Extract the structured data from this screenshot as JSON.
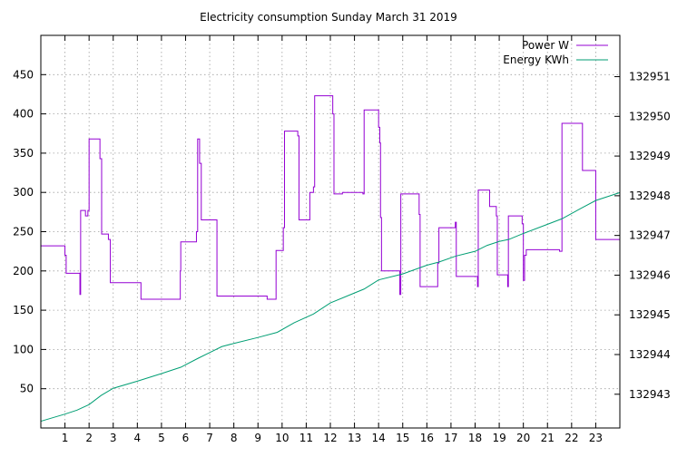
{
  "chart_data": {
    "type": "line",
    "title": "Electricity consumption Sunday March 31 2019",
    "grid": true,
    "legend_position": "top-right",
    "x_axis": {
      "range": [
        0,
        24
      ],
      "ticks": [
        1,
        2,
        3,
        4,
        5,
        6,
        7,
        8,
        9,
        10,
        11,
        12,
        13,
        14,
        15,
        16,
        17,
        18,
        19,
        20,
        21,
        22,
        23
      ]
    },
    "y_axis_left": {
      "range": [
        0,
        500
      ],
      "ticks": [
        50,
        100,
        150,
        200,
        250,
        300,
        350,
        400,
        450
      ]
    },
    "y_axis_right": {
      "range": [
        132942.15,
        132952.04
      ],
      "ticks": [
        132943,
        132944,
        132945,
        132946,
        132947,
        132948,
        132949,
        132950,
        132951
      ]
    },
    "series": [
      {
        "name": "Power W",
        "axis": "left",
        "color": "#9400d3",
        "step": true,
        "points": [
          [
            0.0,
            232
          ],
          [
            1.0,
            232
          ],
          [
            1.0,
            220
          ],
          [
            1.05,
            220
          ],
          [
            1.05,
            197
          ],
          [
            1.62,
            197
          ],
          [
            1.62,
            170
          ],
          [
            1.65,
            170
          ],
          [
            1.65,
            277
          ],
          [
            1.85,
            277
          ],
          [
            1.85,
            270
          ],
          [
            1.95,
            270
          ],
          [
            1.95,
            277
          ],
          [
            2.0,
            277
          ],
          [
            2.0,
            368
          ],
          [
            2.45,
            368
          ],
          [
            2.45,
            343
          ],
          [
            2.52,
            343
          ],
          [
            2.52,
            247
          ],
          [
            2.8,
            247
          ],
          [
            2.8,
            240
          ],
          [
            2.88,
            240
          ],
          [
            2.88,
            185
          ],
          [
            4.15,
            185
          ],
          [
            4.15,
            164
          ],
          [
            5.78,
            164
          ],
          [
            5.78,
            200
          ],
          [
            5.8,
            200
          ],
          [
            5.8,
            237
          ],
          [
            6.45,
            237
          ],
          [
            6.45,
            250
          ],
          [
            6.5,
            250
          ],
          [
            6.5,
            368
          ],
          [
            6.58,
            368
          ],
          [
            6.58,
            337
          ],
          [
            6.65,
            337
          ],
          [
            6.65,
            265
          ],
          [
            7.3,
            265
          ],
          [
            7.3,
            168
          ],
          [
            9.38,
            168
          ],
          [
            9.38,
            164
          ],
          [
            9.75,
            164
          ],
          [
            9.75,
            226
          ],
          [
            10.05,
            226
          ],
          [
            10.05,
            255
          ],
          [
            10.1,
            255
          ],
          [
            10.1,
            378
          ],
          [
            10.65,
            378
          ],
          [
            10.65,
            372
          ],
          [
            10.7,
            372
          ],
          [
            10.7,
            265
          ],
          [
            11.15,
            265
          ],
          [
            11.15,
            300
          ],
          [
            11.3,
            300
          ],
          [
            11.3,
            307
          ],
          [
            11.35,
            307
          ],
          [
            11.35,
            423
          ],
          [
            12.1,
            423
          ],
          [
            12.1,
            400
          ],
          [
            12.15,
            400
          ],
          [
            12.15,
            298
          ],
          [
            12.5,
            298
          ],
          [
            12.5,
            300
          ],
          [
            13.35,
            300
          ],
          [
            13.35,
            298
          ],
          [
            13.4,
            298
          ],
          [
            13.4,
            405
          ],
          [
            14.0,
            405
          ],
          [
            14.0,
            383
          ],
          [
            14.05,
            383
          ],
          [
            14.05,
            363
          ],
          [
            14.08,
            363
          ],
          [
            14.08,
            268
          ],
          [
            14.12,
            268
          ],
          [
            14.12,
            200
          ],
          [
            14.88,
            200
          ],
          [
            14.88,
            170
          ],
          [
            14.92,
            170
          ],
          [
            14.92,
            298
          ],
          [
            15.68,
            298
          ],
          [
            15.68,
            272
          ],
          [
            15.72,
            272
          ],
          [
            15.72,
            180
          ],
          [
            16.45,
            180
          ],
          [
            16.45,
            210
          ],
          [
            16.5,
            210
          ],
          [
            16.5,
            255
          ],
          [
            17.18,
            255
          ],
          [
            17.18,
            262
          ],
          [
            17.22,
            262
          ],
          [
            17.22,
            193
          ],
          [
            18.1,
            193
          ],
          [
            18.1,
            180
          ],
          [
            18.13,
            180
          ],
          [
            18.13,
            303
          ],
          [
            18.6,
            303
          ],
          [
            18.6,
            282
          ],
          [
            18.88,
            282
          ],
          [
            18.88,
            270
          ],
          [
            18.92,
            270
          ],
          [
            18.92,
            195
          ],
          [
            19.35,
            195
          ],
          [
            19.35,
            180
          ],
          [
            19.38,
            180
          ],
          [
            19.38,
            270
          ],
          [
            19.95,
            270
          ],
          [
            19.95,
            260
          ],
          [
            20.0,
            260
          ],
          [
            20.0,
            188
          ],
          [
            20.05,
            188
          ],
          [
            20.05,
            220
          ],
          [
            20.12,
            220
          ],
          [
            20.12,
            227
          ],
          [
            21.5,
            227
          ],
          [
            21.5,
            225
          ],
          [
            21.6,
            225
          ],
          [
            21.6,
            388
          ],
          [
            22.45,
            388
          ],
          [
            22.45,
            328
          ],
          [
            23.0,
            328
          ],
          [
            23.0,
            240
          ],
          [
            24.0,
            240
          ]
        ]
      },
      {
        "name": "Energy KWh",
        "axis": "right",
        "color": "#009e73",
        "step": false,
        "points": [
          [
            0.0,
            132942.32
          ],
          [
            1.0,
            132942.5
          ],
          [
            1.5,
            132942.6
          ],
          [
            2.0,
            132942.74
          ],
          [
            2.5,
            132942.97
          ],
          [
            3.0,
            132943.15
          ],
          [
            4.0,
            132943.33
          ],
          [
            5.0,
            132943.52
          ],
          [
            5.8,
            132943.68
          ],
          [
            6.5,
            132943.9
          ],
          [
            7.0,
            132944.05
          ],
          [
            7.5,
            132944.2
          ],
          [
            8.0,
            132944.28
          ],
          [
            9.0,
            132944.43
          ],
          [
            9.8,
            132944.56
          ],
          [
            10.5,
            132944.8
          ],
          [
            11.3,
            132945.02
          ],
          [
            12.0,
            132945.3
          ],
          [
            13.0,
            132945.55
          ],
          [
            13.4,
            132945.65
          ],
          [
            14.0,
            132945.88
          ],
          [
            15.0,
            132946.03
          ],
          [
            16.0,
            132946.25
          ],
          [
            16.5,
            132946.33
          ],
          [
            17.2,
            132946.48
          ],
          [
            18.0,
            132946.6
          ],
          [
            18.5,
            132946.75
          ],
          [
            19.0,
            132946.85
          ],
          [
            19.4,
            132946.9
          ],
          [
            20.0,
            132947.05
          ],
          [
            21.0,
            132947.28
          ],
          [
            21.6,
            132947.42
          ],
          [
            22.5,
            132947.72
          ],
          [
            23.0,
            132947.88
          ],
          [
            24.0,
            132948.08
          ]
        ]
      }
    ]
  }
}
